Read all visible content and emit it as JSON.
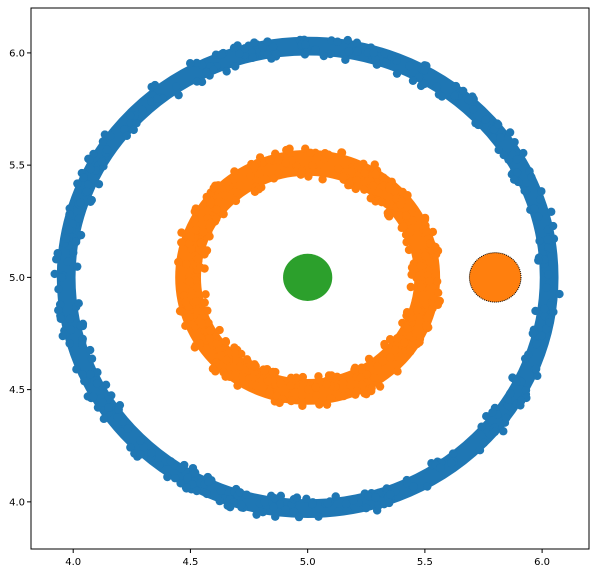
{
  "chart_data": {
    "type": "scatter",
    "title": "",
    "xlabel": "",
    "ylabel": "",
    "xlim": [
      3.82,
      6.2
    ],
    "ylim": [
      3.79,
      6.2
    ],
    "grid": false,
    "legend": "none",
    "x_ticks": [
      "4.0",
      "4.5",
      "5.0",
      "5.5",
      "6.0"
    ],
    "y_ticks": [
      "4.0",
      "4.5",
      "5.0",
      "5.5",
      "6.0"
    ],
    "series": [
      {
        "shape": "ring",
        "color": "#1f77b4",
        "center": [
          5.0,
          5.0
        ],
        "radius": 1.03,
        "thickness": 0.08
      },
      {
        "shape": "ring",
        "color": "#ff7f0e",
        "center": [
          5.0,
          5.0
        ],
        "radius": 0.51,
        "thickness": 0.11
      },
      {
        "shape": "disk",
        "color": "#2ca02c",
        "center": [
          5.0,
          5.0
        ],
        "radius": 0.105
      },
      {
        "shape": "disk",
        "color": "#ff7f0e",
        "edge_color": "#000000",
        "center": [
          5.8,
          5.0
        ],
        "radius": 0.11
      }
    ]
  }
}
